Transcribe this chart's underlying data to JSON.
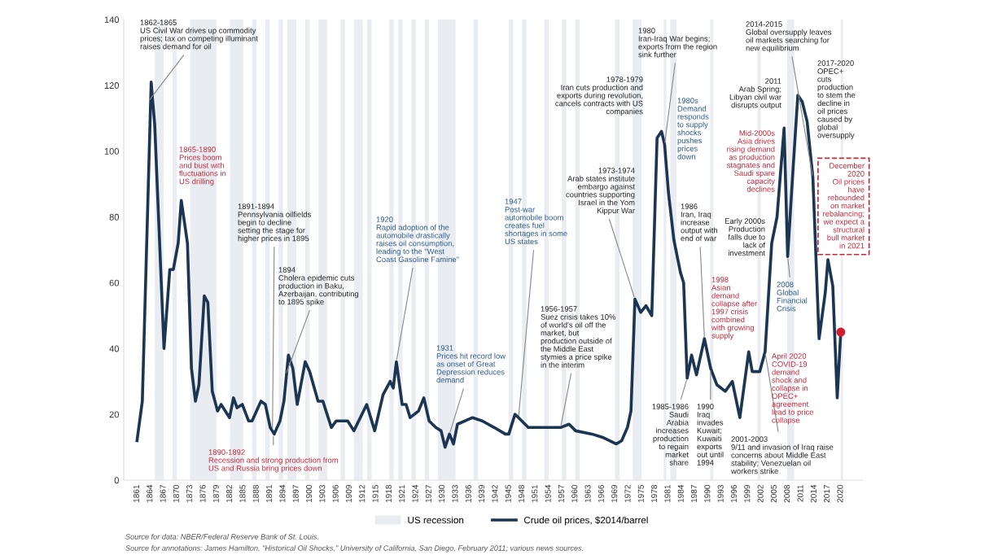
{
  "chart_data": {
    "type": "line",
    "ylim": [
      0,
      140
    ],
    "yticks": [
      0,
      20,
      40,
      60,
      80,
      100,
      120,
      140
    ],
    "xlim": [
      1858,
      2025
    ],
    "xticks": [
      1861,
      1864,
      1867,
      1870,
      1873,
      1876,
      1879,
      1882,
      1885,
      1888,
      1891,
      1894,
      1897,
      1900,
      1903,
      1906,
      1909,
      1912,
      1915,
      1918,
      1921,
      1924,
      1927,
      1930,
      1933,
      1936,
      1939,
      1942,
      1945,
      1948,
      1951,
      1954,
      1957,
      1960,
      1963,
      1966,
      1969,
      1972,
      1975,
      1978,
      1981,
      1984,
      1987,
      1990,
      1993,
      1996,
      1999,
      2002,
      2005,
      2008,
      2011,
      2014,
      2017,
      2020
    ],
    "grid": false,
    "legend": "bottom",
    "marker": "none",
    "line_style": "solid",
    "series": [
      {
        "name": "Crude oil prices, $2014/barrel",
        "color": "#1c3553",
        "x": [
          1861.0,
          1862.2,
          1864.2,
          1865.0,
          1867.1,
          1868.4,
          1869.2,
          1870.3,
          1871.0,
          1872.4,
          1873.3,
          1874.2,
          1875.0,
          1876.2,
          1877.0,
          1878.0,
          1879.2,
          1880.0,
          1881.9,
          1882.8,
          1883.6,
          1884.8,
          1886.2,
          1887.0,
          1889.0,
          1890.0,
          1891.1,
          1892.0,
          1893.3,
          1894.2,
          1895.2,
          1896.2,
          1897.2,
          1899.0,
          1900.0,
          1901.9,
          1903.0,
          1904.9,
          1906.0,
          1908.6,
          1910.0,
          1912.9,
          1914.7,
          1916.6,
          1918.2,
          1918.9,
          1919.6,
          1920.9,
          1921.8,
          1922.7,
          1924.6,
          1925.8,
          1927.0,
          1928.5,
          1929.7,
          1930.6,
          1931.6,
          1932.5,
          1933.4,
          1936.8,
          1939.0,
          1941.7,
          1944.2,
          1945.0,
          1946.4,
          1947.2,
          1949.4,
          1951.8,
          1954.3,
          1956.7,
          1958.6,
          1960.1,
          1963.8,
          1966.2,
          1969.3,
          1970.5,
          1971.8,
          1972.6,
          1973.5,
          1974.8,
          1976.0,
          1977.3,
          1978.5,
          1979.5,
          1980.2,
          1981.1,
          1982.3,
          1983.8,
          1984.5,
          1985.3,
          1986.3,
          1987.4,
          1989.2,
          1990.6,
          1992.0,
          1993.9,
          1995.5,
          1997.2,
          1999.2,
          2000.0,
          2001.7,
          2002.9,
          2004.4,
          2005.6,
          2007.2,
          2008.0,
          2009.1,
          2010.3,
          2011.3,
          2012.4,
          2013.7,
          2015.1,
          2016.5,
          2017.1,
          2018.2,
          2019.2,
          2020.0
        ],
        "values": [
          12,
          24,
          121,
          108,
          40,
          64,
          64,
          72,
          85,
          72,
          34,
          24,
          29,
          56,
          54,
          27,
          21,
          23,
          19,
          25,
          22,
          23,
          18,
          18,
          24,
          23,
          16,
          14,
          18,
          24,
          38,
          34,
          23,
          36,
          33,
          24,
          24,
          16,
          18,
          18,
          15,
          23,
          15,
          26,
          30,
          28,
          36,
          23,
          23,
          19,
          21,
          25,
          18,
          16,
          15,
          10,
          14,
          11,
          17,
          19,
          18,
          16,
          14,
          14,
          20,
          19,
          16,
          16,
          16,
          16,
          17,
          15,
          14,
          13,
          11,
          12,
          16,
          21,
          55,
          51,
          53,
          50,
          104,
          106,
          102,
          87,
          73,
          63,
          60,
          31,
          38,
          32,
          43,
          34,
          29,
          27,
          30,
          19,
          39,
          33,
          33,
          39,
          72,
          80,
          107,
          68,
          92,
          117,
          115,
          109,
          92,
          43,
          57,
          67,
          59,
          25,
          45
        ]
      },
      {
        "type": "scatter",
        "color": "#d0202e",
        "x": [
          2020.0
        ],
        "values": [
          45
        ],
        "marker": "circle"
      }
    ],
    "bands": [
      {
        "axis": "x",
        "from": 1865,
        "to": 1867,
        "label": "US recession",
        "color": "#e9edf2"
      },
      {
        "axis": "x",
        "from": 1869,
        "to": 1870,
        "color": "#e9edf2"
      },
      {
        "axis": "x",
        "from": 1873,
        "to": 1879,
        "color": "#e9edf2"
      },
      {
        "axis": "x",
        "from": 1882,
        "to": 1885,
        "color": "#e9edf2"
      },
      {
        "axis": "x",
        "from": 1887,
        "to": 1888,
        "color": "#e9edf2"
      },
      {
        "axis": "x",
        "from": 1890,
        "to": 1891,
        "color": "#e9edf2"
      },
      {
        "axis": "x",
        "from": 1893,
        "to": 1894,
        "color": "#e9edf2"
      },
      {
        "axis": "x",
        "from": 1895,
        "to": 1897,
        "color": "#e9edf2"
      },
      {
        "axis": "x",
        "from": 1899,
        "to": 1900,
        "color": "#e9edf2"
      },
      {
        "axis": "x",
        "from": 1902,
        "to": 1904,
        "color": "#e9edf2"
      },
      {
        "axis": "x",
        "from": 1907,
        "to": 1908,
        "color": "#e9edf2"
      },
      {
        "axis": "x",
        "from": 1910,
        "to": 1912,
        "color": "#e9edf2"
      },
      {
        "axis": "x",
        "from": 1913,
        "to": 1914,
        "color": "#e9edf2"
      },
      {
        "axis": "x",
        "from": 1918,
        "to": 1919,
        "color": "#e9edf2"
      },
      {
        "axis": "x",
        "from": 1920,
        "to": 1921,
        "color": "#e9edf2"
      },
      {
        "axis": "x",
        "from": 1923,
        "to": 1924,
        "color": "#e9edf2"
      },
      {
        "axis": "x",
        "from": 1926,
        "to": 1927,
        "color": "#e9edf2"
      },
      {
        "axis": "x",
        "from": 1929,
        "to": 1933,
        "color": "#e9edf2"
      },
      {
        "axis": "x",
        "from": 1937,
        "to": 1938,
        "color": "#e9edf2"
      },
      {
        "axis": "x",
        "from": 1945,
        "to": 1946,
        "color": "#e9edf2"
      },
      {
        "axis": "x",
        "from": 1948,
        "to": 1949,
        "color": "#e9edf2"
      },
      {
        "axis": "x",
        "from": 1953,
        "to": 1954,
        "color": "#e9edf2"
      },
      {
        "axis": "x",
        "from": 1957,
        "to": 1958,
        "color": "#e9edf2"
      },
      {
        "axis": "x",
        "from": 1960,
        "to": 1961,
        "color": "#e9edf2"
      },
      {
        "axis": "x",
        "from": 1969,
        "to": 1970,
        "color": "#e9edf2"
      },
      {
        "axis": "x",
        "from": 1973,
        "to": 1975,
        "color": "#e9edf2"
      },
      {
        "axis": "x",
        "from": 1980,
        "to": 1980.6,
        "color": "#e9edf2"
      },
      {
        "axis": "x",
        "from": 1981.5,
        "to": 1982.9,
        "color": "#e9edf2"
      },
      {
        "axis": "x",
        "from": 1990.5,
        "to": 1991.2,
        "color": "#e9edf2"
      },
      {
        "axis": "x",
        "from": 2001.2,
        "to": 2001.9,
        "color": "#e9edf2"
      },
      {
        "axis": "x",
        "from": 2007.9,
        "to": 2009.5,
        "color": "#e9edf2"
      },
      {
        "axis": "x",
        "from": 2020,
        "to": 2020.5,
        "color": "#e9edf2"
      }
    ],
    "annotations": [
      {
        "text": "1862-1865\nUS Civil War drives up commodity\nprices; tax on competing illuminant\nraises demand for oil",
        "x": 1863.5,
        "y": 115
      },
      "1865-1890\nPrices boom\nand bust with\nfluctuations in\nUS drilling",
      {
        "text": "1891-1894\nPennsylvania oilfields\nbegin to decline\nsetting the stage for\nhigher prices in 1895",
        "x": 1891.6,
        "y": 15
      },
      {
        "text": "1894\nCholera epidemic cuts\nproduction in Baku,\nAzerbaijan, contributing\nto 1895 spike",
        "x": 1894.6,
        "y": 32
      },
      {
        "text": "1890-1892\nRecession and strong production from\nUS and Russia bring prices down",
        "x": 1891.8,
        "y": 14
      },
      {
        "text": "1920\nRapid adoption of the\nautomobile drastically\nraises oil consumption,\nleading to the \"West\nCoast Gasoline Famine\"",
        "x": 1919.6,
        "y": 36
      },
      {
        "text": "1931\nPrices hit record low\nas onset of Great\nDepression reduces\ndemand",
        "x": 1931.6,
        "y": 14
      },
      {
        "text": "1947\nPost-war\nautomobile boom\ncreates fuel\nshortages in some\nUS states",
        "x": 1947.2,
        "y": 19
      },
      {
        "text": "1956-1957\nSuez crisis takes 10%\nof world's oil off the\nmarket, but\nproduction outside of\nthe Middle East\nstymies a price spike\nin the interim",
        "x": 1956.7,
        "y": 16
      },
      {
        "text": "1973-1974\nArab states institute\nembargo against\ncountries supporting\nIsrael in the Yom\nKippur War",
        "x": 1973.5,
        "y": 55
      },
      "1978-1979\nIran cuts production and\nexports during revolution,\ncancels contracts with US\ncompanies",
      {
        "text": "1980\nIran-Iraq War begins;\nexports from the region\nsink further",
        "x": 1980.2,
        "y": 102
      },
      "1980s\nDemand\nresponds\nto supply\nshocks\npushes\nprices\ndown",
      {
        "text": "1986\nIran, Iraq\nincrease\noutput with\nend of war",
        "x": 1989.2,
        "y": 43
      },
      {
        "text": "1985-1986\nSaudi\nArabia\nincreases\nproduction\nto regain\nmarket\nshare",
        "x": 1985.3,
        "y": 31
      },
      {
        "text": "1990\nIraq\ninvades\nKuwait;\nKuwaiti\nexports\nout until\n1994",
        "x": 1990.6,
        "y": 34
      },
      {
        "text": "2001-2003\n9/11 and invasion of Iraq raise\nconcerns about Middle East\nstability; Venezuelan oil\nworkers strike",
        "x": 2002.9,
        "y": 39
      },
      "1998\nAsian\ndemand\ncollapse after\n1997 crisis\ncombined\nwith growing\nsupply",
      "Early 2000s\nProduction\nfalls due to\nlack of\ninvestment",
      "Mid-2000s\nAsia drives\nrising demand\nas production\nstagnates and\nSaudi spare\ncapacity\ndeclines",
      "2011\nArab Spring;\nLibyan civil war\ndisrupts output",
      {
        "text": "2008\nGlobal\nFinancial\nCrisis",
        "x": 2008.0,
        "y": 68
      },
      {
        "text": "2014-2015\nGlobal oversupply leaves\noil markets searching for\nnew equilibrium",
        "x": 2013.7,
        "y": 92
      },
      "2017-2020\nOPEC+\ncuts\nproduction\nto stem the\ndecline in\noil prices\ncaused by\nglobal\noversupply",
      "December\n2020\nOil prices\nhave\nrebounded\non market\nrebalancing;\nwe expect a\nstructural\nbull market\nin 2021",
      "April 2020\nCOVID-19\ndemand\nshock and\ncollapse in\nOPEC+\nagreement\nlead to price\ncollapse",
      "Source for data: NBER/Federal Reserve Bank of St. Louis.",
      "Source for annotations: James Hamilton, \"Historical Oil Shocks,\" University of California, San Diego, February 2011; various news sources."
    ]
  }
}
